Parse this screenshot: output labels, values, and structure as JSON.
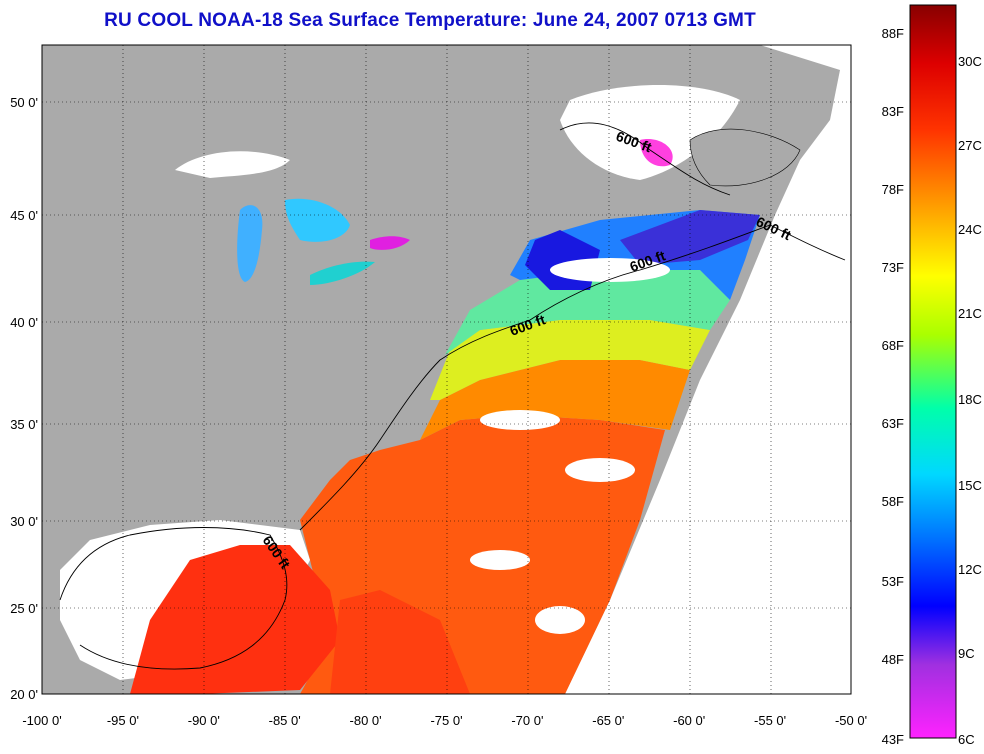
{
  "title": "RU COOL  NOAA-18  Sea Surface Temperature:  June 24, 2007 0713 GMT",
  "map": {
    "lon_range": [
      -100,
      -50
    ],
    "lat_range": [
      20,
      52
    ],
    "lon_ticks": [
      "-100 0'",
      "-95 0'",
      "-90 0'",
      "-85 0'",
      "-80 0'",
      "-75 0'",
      "-70 0'",
      "-65 0'",
      "-60 0'",
      "-55 0'",
      "-50 0'"
    ],
    "lat_ticks": [
      "20 0'",
      "25 0'",
      "30 0'",
      "35 0'",
      "40 0'",
      "45 0'",
      "50 0'"
    ],
    "grid": true,
    "land_color": "#aaaaaa",
    "no_data_color": "#ffffff",
    "contour_label": "600 ft"
  },
  "colorbar": {
    "fahrenheit_labels": [
      "88F",
      "83F",
      "78F",
      "73F",
      "68F",
      "63F",
      "58F",
      "53F",
      "48F",
      "43F"
    ],
    "celsius_labels": [
      "30C",
      "27C",
      "24C",
      "21C",
      "18C",
      "15C",
      "12C",
      "9C",
      "6C"
    ],
    "colors": [
      "#ff22ff",
      "#a030e0",
      "#0000ff",
      "#0088ff",
      "#00ffff",
      "#00ff80",
      "#aaff00",
      "#ffff00",
      "#ff9900",
      "#ff3300",
      "#cc0000",
      "#880000"
    ]
  }
}
